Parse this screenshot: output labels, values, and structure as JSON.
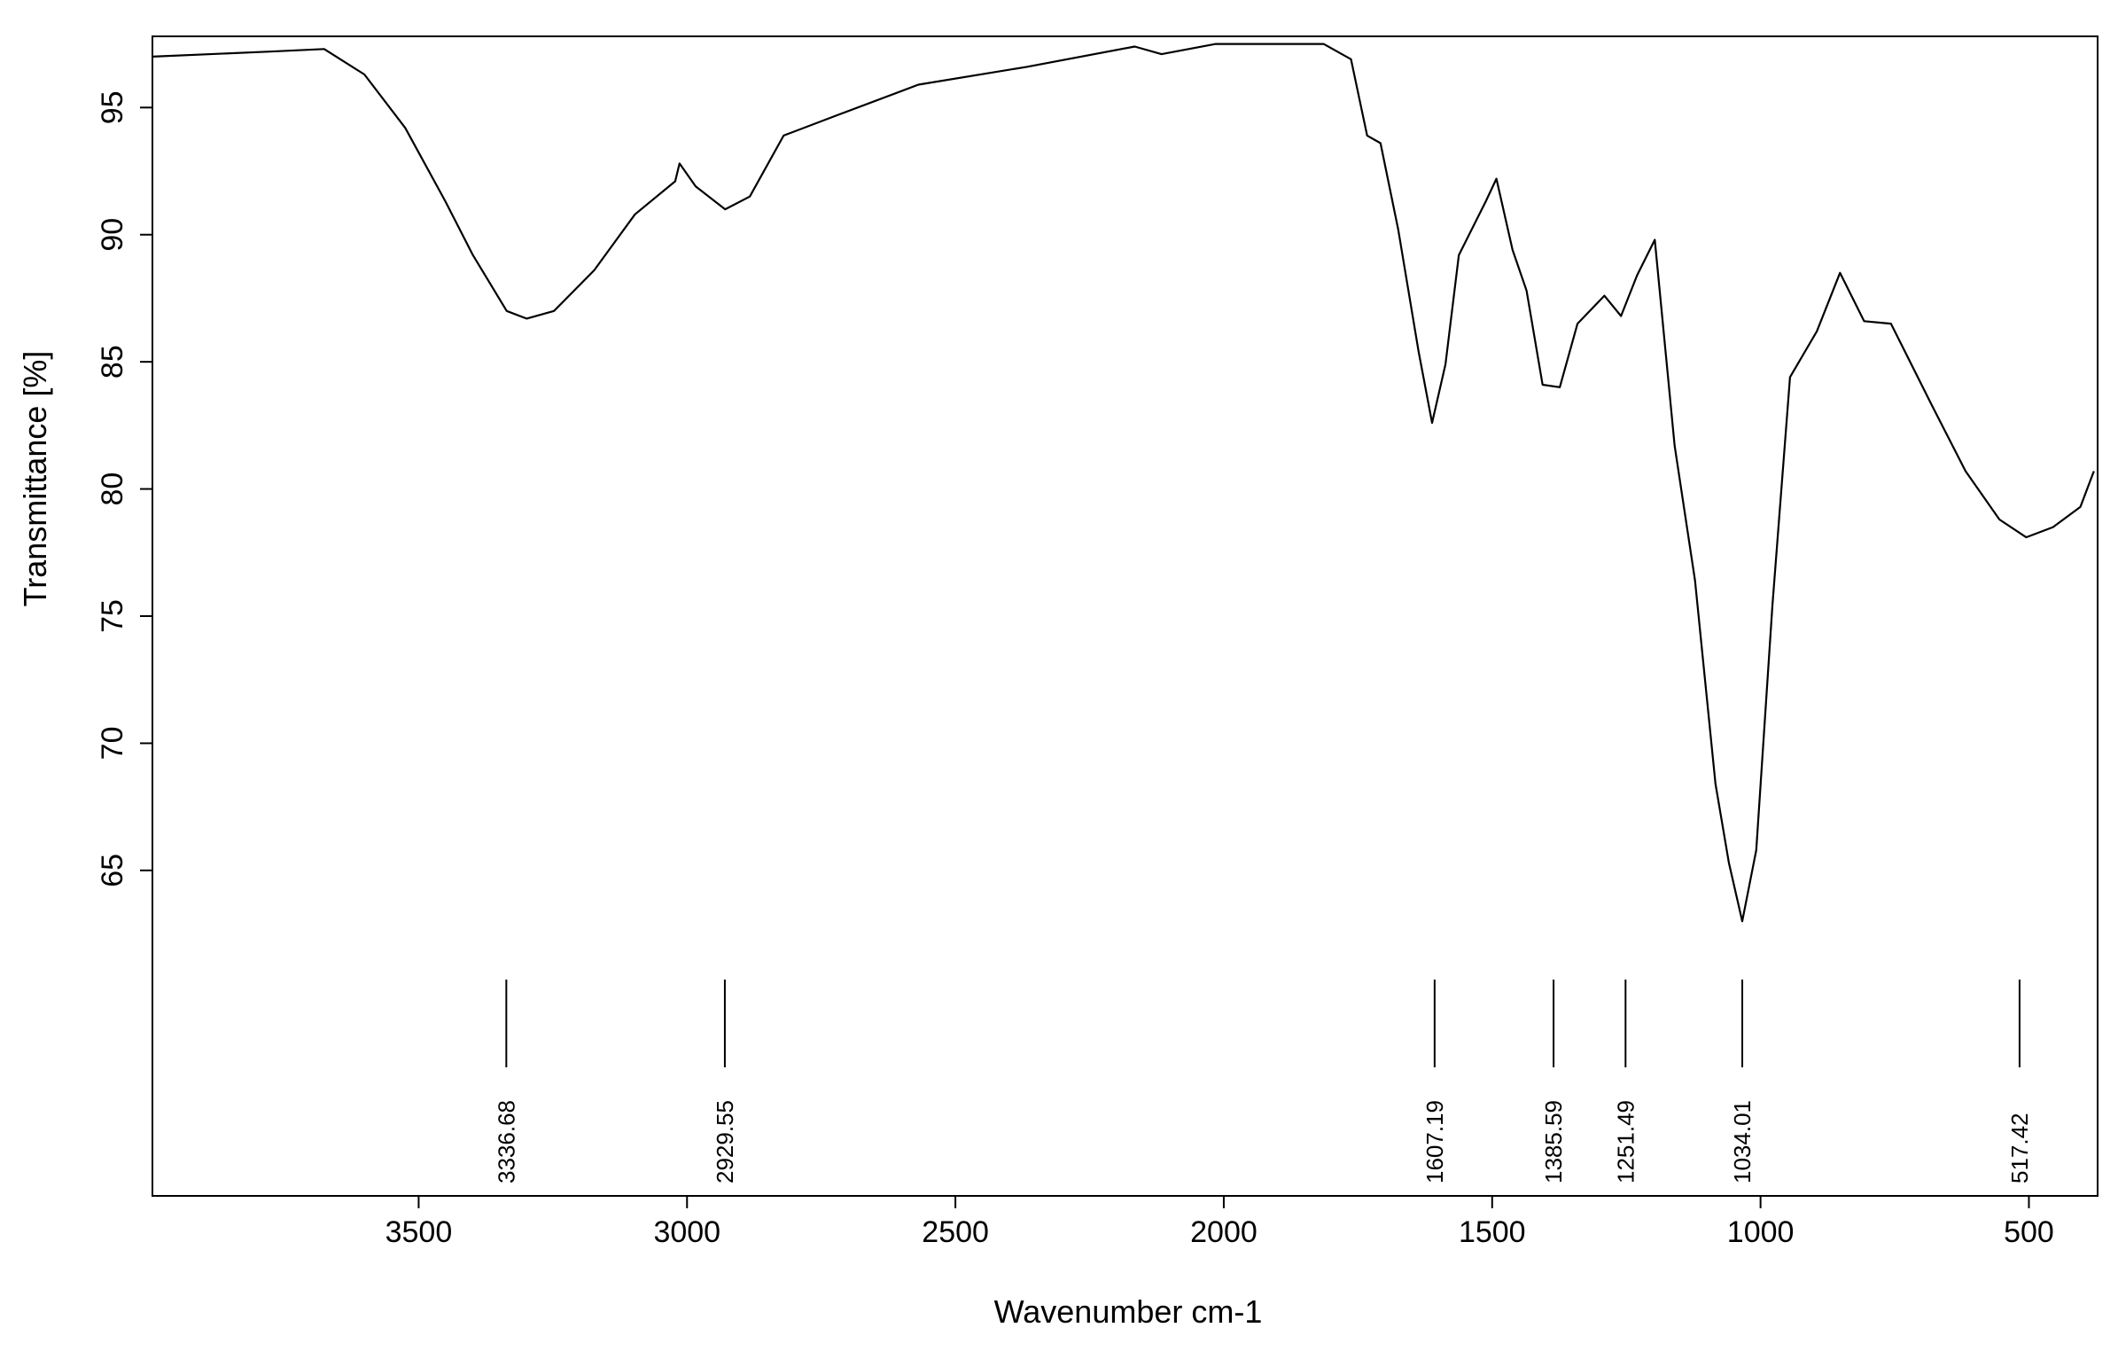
{
  "chart_data": {
    "type": "line",
    "xlabel": "Wavenumber cm-1",
    "ylabel": "Transmittance [%]",
    "x": [
      3996,
      3777,
      3676,
      3601,
      3525,
      3450,
      3399,
      3336,
      3299,
      3248,
      3173,
      3097,
      3022,
      3014,
      2984,
      2929,
      2883,
      2820,
      2720,
      2569,
      2367,
      2166,
      2116,
      2015,
      1814,
      1763,
      1733,
      1708,
      1675,
      1637,
      1612,
      1587,
      1562,
      1512,
      1492,
      1462,
      1436,
      1406,
      1374,
      1341,
      1291,
      1260,
      1230,
      1197,
      1160,
      1122,
      1084,
      1059,
      1034,
      1008,
      978,
      945,
      895,
      852,
      807,
      757,
      681,
      618,
      555,
      505,
      455,
      404,
      379
    ],
    "values": [
      97.0,
      97.2,
      97.3,
      96.3,
      94.2,
      91.3,
      89.2,
      87.0,
      86.7,
      87.0,
      88.6,
      90.8,
      92.1,
      92.8,
      91.9,
      91.0,
      91.5,
      93.9,
      94.7,
      95.9,
      96.6,
      97.4,
      97.1,
      97.5,
      97.5,
      96.9,
      93.9,
      93.6,
      90.2,
      85.4,
      82.6,
      84.9,
      89.2,
      91.3,
      92.2,
      89.4,
      87.8,
      84.1,
      84.0,
      86.5,
      87.6,
      86.8,
      88.4,
      89.8,
      81.7,
      76.4,
      68.4,
      65.3,
      63.0,
      65.8,
      75.4,
      84.4,
      86.2,
      88.5,
      86.6,
      86.5,
      83.3,
      80.7,
      78.8,
      78.1,
      78.5,
      79.3,
      80.7
    ],
    "color": "#000000",
    "peak_labels": [
      3336.68,
      2929.55,
      1607.19,
      1385.59,
      1251.49,
      1034.01,
      517.42
    ],
    "xlim": [
      3996,
      372
    ],
    "ylim": [
      52.2,
      97.8
    ],
    "xticks": [
      3500,
      3000,
      2500,
      2000,
      1500,
      1000,
      500
    ],
    "yticks": [
      65,
      70,
      75,
      80,
      85,
      90,
      95
    ]
  }
}
